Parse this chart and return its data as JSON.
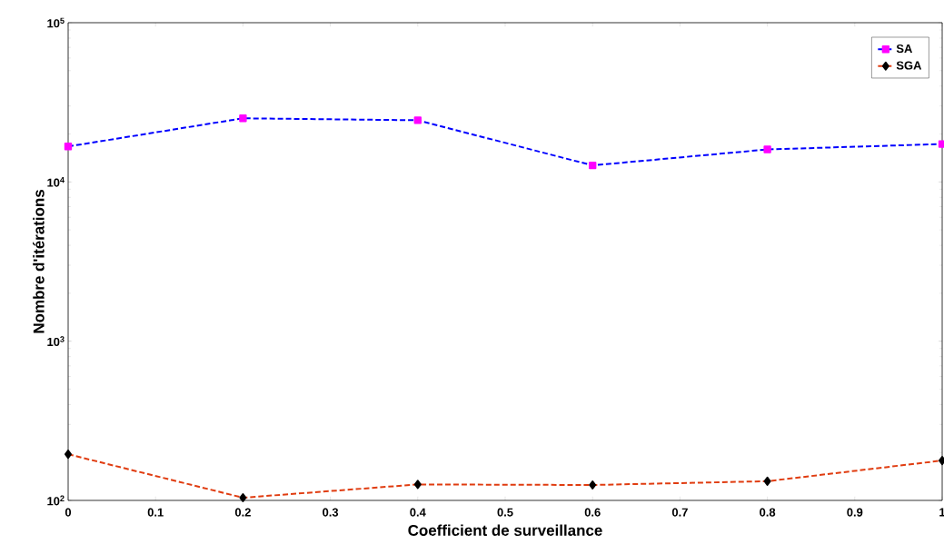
{
  "chart_data": {
    "type": "line",
    "xlabel": "Coefficient de surveillance",
    "ylabel": "Nombre d'itérations",
    "log": "y",
    "legend": "top right",
    "line_style": "dashed",
    "x": [
      0,
      0.2,
      0.4,
      0.6,
      0.8,
      1
    ],
    "series": [
      {
        "name": "SA",
        "color": "#0000ff",
        "colors": [
          "#ff00ff",
          "#ff00ff",
          "#ff00ff",
          "#ff00ff",
          "#ff00ff",
          "#ff00ff"
        ],
        "marker": "square",
        "values": [
          16700,
          25100,
          24400,
          12700,
          16000,
          17300
        ]
      },
      {
        "name": "SGA",
        "color": "#e03c10",
        "colors": [
          "#000000",
          "#000000",
          "#000000",
          "#000000",
          "#000000",
          "#000000"
        ],
        "marker": "diamond",
        "values": [
          195,
          104,
          126,
          125,
          132,
          178
        ]
      }
    ],
    "xlim": [
      0,
      1
    ],
    "xticks": [
      0,
      0.1,
      0.2,
      0.3,
      0.4,
      0.5,
      0.6,
      0.7,
      0.8,
      0.9,
      1
    ],
    "ylim": [
      100,
      100000
    ],
    "yticks": [
      {
        "value": 100,
        "label": "10$^{2}$"
      },
      {
        "value": 1000,
        "label": "10$^{3}$"
      },
      {
        "value": 10000,
        "label": "10$^{4}$"
      },
      {
        "value": 100000,
        "label": "10$^{5}$"
      }
    ]
  }
}
